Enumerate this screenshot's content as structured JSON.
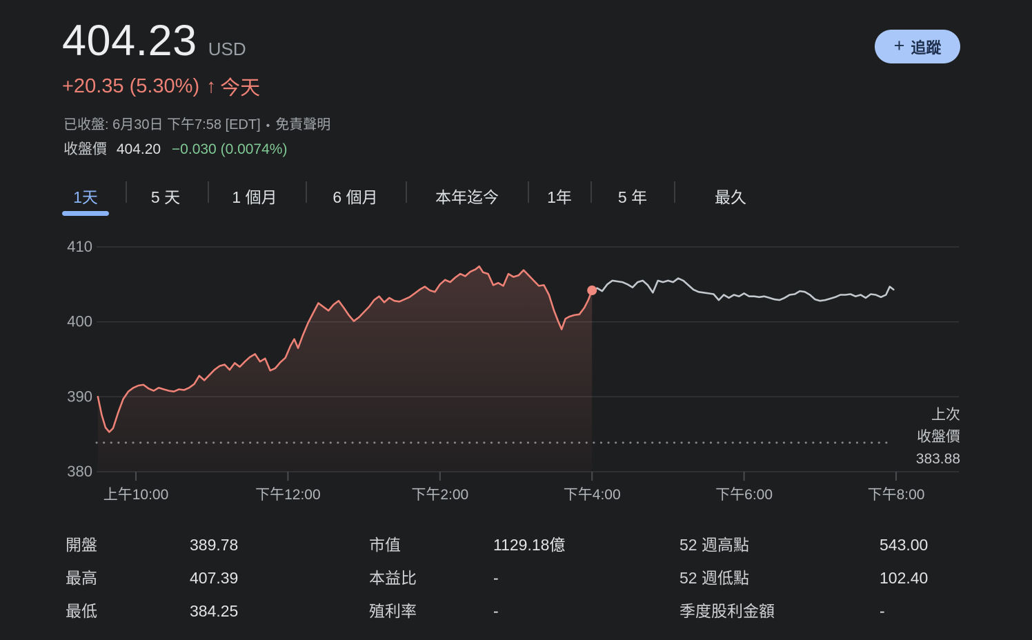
{
  "header": {
    "price": "404.23",
    "currency": "USD",
    "change_line": {
      "change": "+20.35 (5.30%)",
      "arrow": "↑",
      "period_label": "今天"
    },
    "status_line": {
      "closed_text": "已收盤: 6月30日 下午7:58 [EDT]",
      "separator": "•",
      "disclaimer": "免責聲明"
    },
    "after_close": {
      "label": "收盤價",
      "price": "404.20",
      "change": "−0.030 (0.0074%)"
    },
    "follow_button": {
      "icon": "+",
      "label": "追蹤"
    }
  },
  "tabs": [
    {
      "label": "1天",
      "active": true
    },
    {
      "label": "5 天",
      "active": false
    },
    {
      "label": "1 個月",
      "active": false
    },
    {
      "label": "6 個月",
      "active": false
    },
    {
      "label": "本年迄今",
      "active": false
    },
    {
      "label": "1年",
      "active": false
    },
    {
      "label": "5 年",
      "active": false
    },
    {
      "label": "最久",
      "active": false
    }
  ],
  "chart_data": {
    "type": "line",
    "title": "",
    "xlabel": "",
    "ylabel": "",
    "ylim": [
      380,
      410
    ],
    "y_ticks": [
      380,
      390,
      400,
      410
    ],
    "x_tick_labels": [
      "上午10:00",
      "下午12:00",
      "下午2:00",
      "下午4:00",
      "下午6:00",
      "下午8:00"
    ],
    "x_tick_minutes": [
      30,
      150,
      270,
      390,
      510,
      630
    ],
    "x_range_minutes": [
      0,
      630
    ],
    "grid": true,
    "previous_close": {
      "value": 383.88,
      "label_lines": [
        "上次",
        "收盤價",
        "383.88"
      ]
    },
    "close_marker": {
      "t": 390,
      "price": 404.2
    },
    "series": [
      {
        "name": "regular-session",
        "color": "#ee8276",
        "fill": true,
        "points": [
          [
            0,
            390.0
          ],
          [
            3,
            387.6
          ],
          [
            6,
            385.9
          ],
          [
            9,
            385.3
          ],
          [
            12,
            385.8
          ],
          [
            16,
            387.9
          ],
          [
            20,
            389.7
          ],
          [
            24,
            390.7
          ],
          [
            28,
            391.2
          ],
          [
            32,
            391.5
          ],
          [
            36,
            391.6
          ],
          [
            40,
            391.1
          ],
          [
            44,
            390.8
          ],
          [
            48,
            391.2
          ],
          [
            52,
            391.0
          ],
          [
            56,
            390.8
          ],
          [
            60,
            390.7
          ],
          [
            64,
            391.0
          ],
          [
            68,
            390.9
          ],
          [
            72,
            391.2
          ],
          [
            76,
            391.7
          ],
          [
            80,
            392.8
          ],
          [
            84,
            392.2
          ],
          [
            88,
            392.9
          ],
          [
            92,
            393.6
          ],
          [
            96,
            394.1
          ],
          [
            100,
            394.3
          ],
          [
            104,
            393.6
          ],
          [
            108,
            394.5
          ],
          [
            112,
            394.0
          ],
          [
            116,
            394.7
          ],
          [
            120,
            395.3
          ],
          [
            124,
            395.7
          ],
          [
            128,
            394.7
          ],
          [
            132,
            395.1
          ],
          [
            136,
            393.5
          ],
          [
            140,
            393.8
          ],
          [
            144,
            394.6
          ],
          [
            148,
            395.2
          ],
          [
            152,
            396.8
          ],
          [
            155,
            397.7
          ],
          [
            158,
            396.5
          ],
          [
            162,
            398.3
          ],
          [
            166,
            399.9
          ],
          [
            170,
            401.2
          ],
          [
            174,
            402.5
          ],
          [
            178,
            402.0
          ],
          [
            182,
            401.5
          ],
          [
            186,
            402.3
          ],
          [
            190,
            402.8
          ],
          [
            194,
            401.9
          ],
          [
            198,
            400.9
          ],
          [
            202,
            400.1
          ],
          [
            206,
            400.6
          ],
          [
            210,
            401.3
          ],
          [
            214,
            402.0
          ],
          [
            218,
            402.9
          ],
          [
            222,
            403.4
          ],
          [
            226,
            402.6
          ],
          [
            230,
            403.2
          ],
          [
            234,
            402.8
          ],
          [
            238,
            402.7
          ],
          [
            242,
            403.0
          ],
          [
            246,
            403.3
          ],
          [
            250,
            403.8
          ],
          [
            254,
            404.3
          ],
          [
            258,
            404.7
          ],
          [
            262,
            404.2
          ],
          [
            266,
            404.0
          ],
          [
            270,
            405.0
          ],
          [
            274,
            405.6
          ],
          [
            278,
            405.3
          ],
          [
            282,
            405.9
          ],
          [
            286,
            406.4
          ],
          [
            290,
            406.1
          ],
          [
            294,
            406.7
          ],
          [
            298,
            407.0
          ],
          [
            301,
            407.4
          ],
          [
            304,
            406.6
          ],
          [
            308,
            406.4
          ],
          [
            312,
            404.9
          ],
          [
            316,
            405.2
          ],
          [
            320,
            404.8
          ],
          [
            324,
            406.4
          ],
          [
            328,
            406.0
          ],
          [
            332,
            406.2
          ],
          [
            336,
            406.9
          ],
          [
            340,
            406.2
          ],
          [
            344,
            405.5
          ],
          [
            348,
            404.8
          ],
          [
            352,
            404.9
          ],
          [
            356,
            403.6
          ],
          [
            360,
            401.5
          ],
          [
            363,
            400.2
          ],
          [
            366,
            399.0
          ],
          [
            369,
            400.4
          ],
          [
            372,
            400.7
          ],
          [
            376,
            400.9
          ],
          [
            380,
            401.0
          ],
          [
            384,
            401.9
          ],
          [
            387,
            402.9
          ],
          [
            390,
            404.2
          ]
        ]
      },
      {
        "name": "after-hours",
        "color": "#c2c8ce",
        "fill": false,
        "points": [
          [
            390,
            404.2
          ],
          [
            394,
            404.5
          ],
          [
            398,
            404.1
          ],
          [
            402,
            405.0
          ],
          [
            406,
            405.5
          ],
          [
            410,
            405.4
          ],
          [
            414,
            405.3
          ],
          [
            418,
            405.0
          ],
          [
            422,
            404.6
          ],
          [
            426,
            405.3
          ],
          [
            430,
            405.5
          ],
          [
            434,
            404.9
          ],
          [
            438,
            403.9
          ],
          [
            442,
            405.5
          ],
          [
            446,
            405.3
          ],
          [
            450,
            405.5
          ],
          [
            454,
            405.3
          ],
          [
            458,
            405.8
          ],
          [
            462,
            405.5
          ],
          [
            466,
            404.9
          ],
          [
            470,
            404.3
          ],
          [
            474,
            404.0
          ],
          [
            478,
            403.9
          ],
          [
            482,
            403.8
          ],
          [
            486,
            403.7
          ],
          [
            490,
            402.9
          ],
          [
            494,
            403.6
          ],
          [
            498,
            403.2
          ],
          [
            502,
            403.6
          ],
          [
            506,
            403.4
          ],
          [
            510,
            403.8
          ],
          [
            514,
            403.4
          ],
          [
            518,
            403.4
          ],
          [
            522,
            403.3
          ],
          [
            526,
            403.4
          ],
          [
            530,
            403.2
          ],
          [
            534,
            403.0
          ],
          [
            538,
            402.9
          ],
          [
            542,
            403.2
          ],
          [
            546,
            403.6
          ],
          [
            550,
            403.7
          ],
          [
            554,
            404.1
          ],
          [
            558,
            404.0
          ],
          [
            562,
            403.6
          ],
          [
            566,
            403.0
          ],
          [
            570,
            402.8
          ],
          [
            574,
            402.9
          ],
          [
            578,
            403.1
          ],
          [
            582,
            403.3
          ],
          [
            586,
            403.6
          ],
          [
            590,
            403.6
          ],
          [
            594,
            403.7
          ],
          [
            598,
            403.4
          ],
          [
            602,
            403.6
          ],
          [
            606,
            403.2
          ],
          [
            610,
            403.7
          ],
          [
            614,
            403.6
          ],
          [
            618,
            403.3
          ],
          [
            622,
            403.6
          ],
          [
            625,
            404.7
          ],
          [
            628,
            404.3
          ]
        ]
      }
    ]
  },
  "stats": {
    "columns": [
      {
        "rows": [
          {
            "label": "開盤",
            "value": "389.78"
          },
          {
            "label": "最高",
            "value": "407.39"
          },
          {
            "label": "最低",
            "value": "384.25"
          }
        ]
      },
      {
        "rows": [
          {
            "label": "市值",
            "value": "1129.18億"
          },
          {
            "label": "本益比",
            "value": "-"
          },
          {
            "label": "殖利率",
            "value": "-"
          }
        ]
      },
      {
        "rows": [
          {
            "label": "52 週高點",
            "value": "543.00"
          },
          {
            "label": "52 週低點",
            "value": "102.40"
          },
          {
            "label": "季度股利金額",
            "value": "-"
          }
        ]
      }
    ]
  },
  "colors": {
    "background": "#1d1e1f",
    "accent_blue": "#8ab4f8",
    "follow_button_bg": "#a9c7f8",
    "salmon": "#ee8276",
    "green": "#81c995",
    "after_hours_line": "#c2c8ce",
    "marker": "#f0897e",
    "grid": "#35373b",
    "axis_text": "#a5a9ad"
  }
}
